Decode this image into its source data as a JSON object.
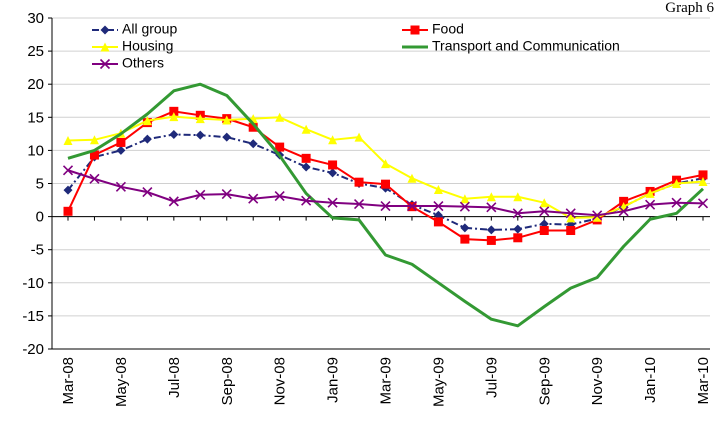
{
  "chart_data": {
    "type": "line",
    "title": "Graph 6",
    "categories": [
      "Mar-08",
      null,
      "May-08",
      null,
      "Jul-08",
      null,
      "Sep-08",
      null,
      "Nov-08",
      null,
      "Jan-09",
      null,
      "Mar-09",
      null,
      "May-09",
      null,
      "Jul-09",
      null,
      "Sep-09",
      null,
      "Nov-09",
      null,
      "Jan-10",
      null,
      "Mar-10"
    ],
    "series": [
      {
        "name": "All group",
        "color": "#1f2a7a",
        "marker": "diamond",
        "dash": "dashdot",
        "values": [
          4,
          9,
          10,
          11.7,
          12.4,
          12.3,
          12,
          11,
          9.3,
          7.5,
          6.6,
          5,
          4.3,
          1.8,
          0.2,
          -1.7,
          -2,
          -1.9,
          -1.1,
          -1.2,
          -0.3,
          1.5,
          3.5,
          5,
          5.8
        ]
      },
      {
        "name": "Food",
        "color": "#ff0000",
        "marker": "square",
        "values": [
          0.8,
          9.3,
          11.2,
          14.2,
          15.9,
          15.3,
          14.8,
          13.5,
          10.5,
          8.8,
          7.8,
          5.2,
          4.9,
          1.5,
          -0.8,
          -3.4,
          -3.6,
          -3.2,
          -2.1,
          -2.1,
          -0.5,
          2.3,
          3.8,
          5.5,
          6.3
        ]
      },
      {
        "name": "Housing",
        "color": "#ffff00",
        "marker": "triangle",
        "values": [
          11.5,
          11.6,
          12.6,
          14.5,
          15.1,
          14.8,
          14.6,
          14.8,
          15,
          13.2,
          11.6,
          12,
          8,
          5.8,
          4.1,
          2.7,
          3,
          3,
          2.1,
          -0.2,
          -0.1,
          1.5,
          3.5,
          5,
          5.3
        ]
      },
      {
        "name": "Transport and Communication",
        "color": "#339933",
        "marker": "none",
        "values": [
          8.8,
          10,
          12.5,
          15.5,
          19,
          20,
          18.3,
          14,
          9.2,
          3.5,
          -0.2,
          -0.5,
          -5.8,
          -7.2,
          -10,
          -12.8,
          -15.5,
          -16.5,
          -13.6,
          -10.8,
          -9.2,
          -4.5,
          -0.4,
          0.5,
          4.2
        ]
      },
      {
        "name": "Others",
        "color": "#800080",
        "marker": "x",
        "values": [
          7,
          5.7,
          4.5,
          3.7,
          2.3,
          3.3,
          3.4,
          2.7,
          3.1,
          2.4,
          2.1,
          1.9,
          1.6,
          1.6,
          1.6,
          1.5,
          1.4,
          0.5,
          0.8,
          0.5,
          0.2,
          0.8,
          1.8,
          2.1,
          2.0
        ]
      }
    ],
    "ylim": [
      -20,
      30
    ],
    "yticks": [
      -20,
      -15,
      -10,
      -5,
      0,
      5,
      10,
      15,
      20,
      25,
      30
    ],
    "grid": true
  }
}
